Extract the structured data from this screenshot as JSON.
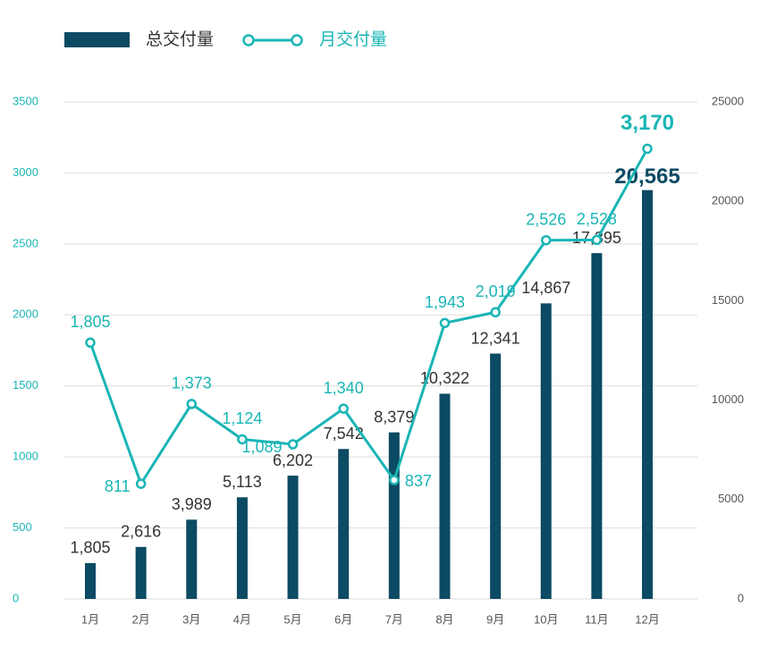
{
  "chart_data": {
    "type": "bar",
    "categories": [
      "1月",
      "2月",
      "3月",
      "4月",
      "5月",
      "6月",
      "7月",
      "8月",
      "9月",
      "10月",
      "11月",
      "12月"
    ],
    "series": [
      {
        "name": "总交付量",
        "type": "bar",
        "axis": "y2",
        "color": "#0d4a63",
        "values": [
          1805,
          2616,
          3989,
          5113,
          6202,
          7542,
          8379,
          10322,
          12341,
          14867,
          17395,
          20565
        ],
        "value_labels": [
          "1,805",
          "2,616",
          "3,989",
          "5,113",
          "6,202",
          "7,542",
          "8,379",
          "10,322",
          "12,341",
          "14,867",
          "17,395",
          "20,565"
        ]
      },
      {
        "name": "月交付量",
        "type": "line",
        "color": "#1ab5b5",
        "values": [
          1805,
          811,
          1373,
          1124,
          1089,
          1340,
          837,
          1943,
          2019,
          2526,
          2528,
          3170
        ],
        "value_labels": [
          "1,805",
          "811",
          "1,373",
          "1,124",
          "1,089",
          "1,340",
          "837",
          "1,943",
          "2,019",
          "2,526",
          "2,528",
          "3,170"
        ]
      }
    ],
    "ylim": [
      0,
      3500
    ],
    "yticks": [
      0,
      500,
      1000,
      1500,
      2000,
      2500,
      3000,
      3500
    ],
    "y2lim": [
      0,
      25000
    ],
    "y2ticks": [
      0,
      5000,
      10000,
      15000,
      20000,
      25000
    ],
    "grid": true
  }
}
